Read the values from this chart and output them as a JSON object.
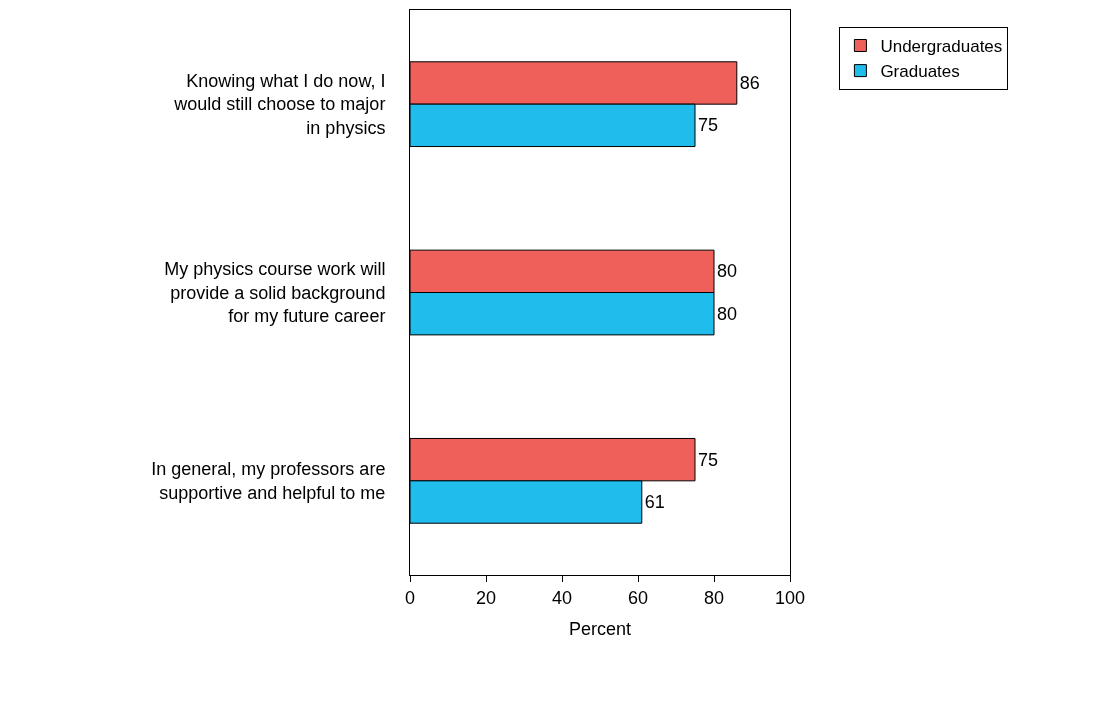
{
  "chart_data": {
    "type": "bar",
    "orientation": "horizontal",
    "xlabel": "Percent",
    "categories": [
      "Knowing what I do now, I would still choose to major in physics",
      "My physics course work will provide a solid background for my future career",
      "In general, my professors are supportive and helpful to me"
    ],
    "series": [
      {
        "name": "Undergraduates",
        "color": "#f0605a",
        "values": [
          86,
          80,
          75
        ]
      },
      {
        "name": "Graduates",
        "color": "#20bcec",
        "values": [
          75,
          80,
          61
        ]
      }
    ],
    "xlim": [
      0,
      100
    ],
    "xticks": [
      0,
      20,
      40,
      60,
      80,
      100
    ],
    "data_labels": true,
    "legend": "top right"
  }
}
